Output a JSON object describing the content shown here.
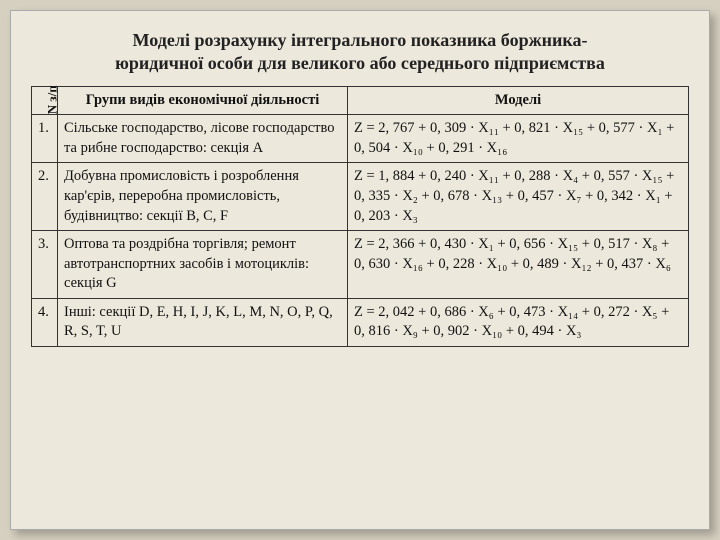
{
  "title_line1": "Моделі розрахунку інтегрального показника боржника-",
  "title_line2": "юридичної особи для великого або середнього підприємства",
  "headers": {
    "num": "N з/п",
    "group": "Групи видів економічної діяльності",
    "model": "Моделі"
  },
  "rows": [
    {
      "num": "1.",
      "group": "Сільське господарство, лісове господарство та рибне господарство: секція A",
      "model": "Z = 2, 767 + 0, 309 · X₁₁ + 0, 821 · X₁₅ + 0, 577 · X₁ + 0, 504 · X₁₀ + 0, 291 · X₁₆"
    },
    {
      "num": "2.",
      "group": "Добувна промисловість і розроблення кар'єрів, переробна промисловість, будівництво: секції B, C, F",
      "model": "Z = 1, 884 + 0, 240 · X₁₁ + 0, 288 · X₄ + 0, 557 · X₁₅ + 0, 335 · X₂ + 0, 678 · X₁₃ + 0, 457 · X₇ + 0, 342 · X₁ + 0, 203 · X₃"
    },
    {
      "num": "3.",
      "group": "Оптова та роздрібна торгівля; ремонт автотранспортних засобів і мотоциклів: секція G",
      "model": "Z = 2, 366 + 0, 430 · X₁ + 0, 656 · X₁₅ + 0, 517 · X₈ + 0, 630 · X₁₆ + 0, 228 · X₁₀ + 0, 489 · X₁₂ + 0, 437 · X₆"
    },
    {
      "num": "4.",
      "group": "Інші: секції D, E, H, I, J, K, L, M, N, O, P, Q, R, S, T, U",
      "model": "Z = 2, 042 + 0, 686 · X₆ + 0, 473 · X₁₄ + 0, 272 · X₅ + 0, 816 · X₉ + 0, 902 · X₁₀ + 0, 494 · X₃"
    }
  ],
  "style": {
    "background": "#ece8dc",
    "outer_bg": "#d6d0c0",
    "border_color": "#333333",
    "text_color": "#111111",
    "title_fontsize": 18,
    "cell_fontsize": 14.5,
    "font_family": "Georgia, Times New Roman, serif"
  }
}
